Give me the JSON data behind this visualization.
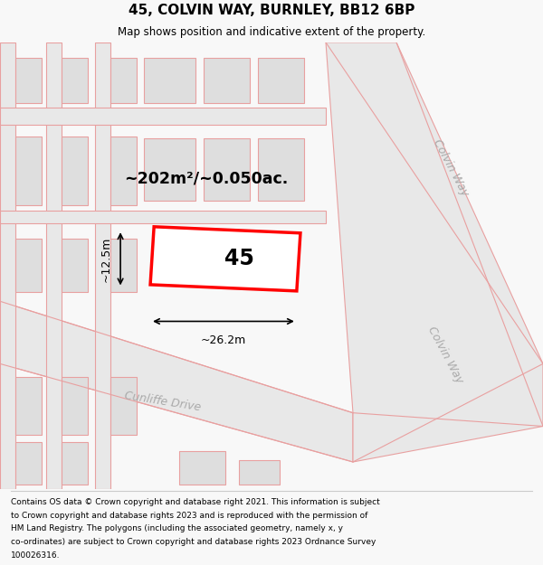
{
  "title_line1": "45, COLVIN WAY, BURNLEY, BB12 6BP",
  "title_line2": "Map shows position and indicative extent of the property.",
  "area_label": "~202m²/~0.050ac.",
  "plot_number": "45",
  "width_label": "~26.2m",
  "height_label": "~12.5m",
  "footer_lines": [
    "Contains OS data © Crown copyright and database right 2021. This information is subject",
    "to Crown copyright and database rights 2023 and is reproduced with the permission of",
    "HM Land Registry. The polygons (including the associated geometry, namely x, y",
    "co-ordinates) are subject to Crown copyright and database rights 2023 Ordnance Survey",
    "100026316."
  ],
  "bg_color": "#f8f8f8",
  "map_bg": "#ffffff",
  "road_fill": "#e8e8e8",
  "road_stroke": "#e8a0a0",
  "building_fill": "#dedede",
  "building_stroke": "#e8a0a0",
  "plot_stroke": "#ff0000",
  "plot_fill": "#ffffff",
  "road_label_color": "#aaaaaa",
  "title_color": "#000000",
  "footer_color": "#000000"
}
